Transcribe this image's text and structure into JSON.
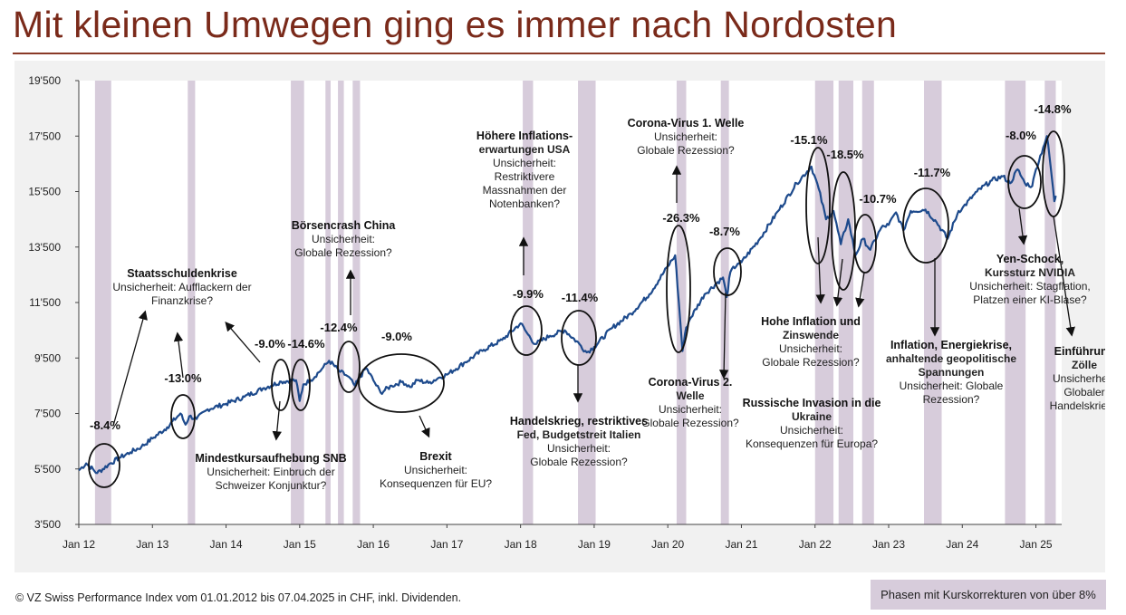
{
  "title": "Mit kleinen Umwegen ging es immer nach Nordosten",
  "footnote": "© VZ   Swiss Performance Index vom 01.01.2012 bis 07.04.2025 in CHF, inkl. Dividenden.",
  "legend_label": "Phasen mit Kurskorrekturen von über 8%",
  "colors": {
    "title": "#7a2a1a",
    "line": "#1d4a8c",
    "band": "#d7ccdb",
    "panel": "#f1f1f1"
  },
  "chart_data": {
    "type": "line",
    "title": "Mit kleinen Umwegen ging es immer nach Nordosten",
    "ylim": [
      3500,
      19500
    ],
    "yticks": [
      3500,
      5500,
      7500,
      9500,
      11500,
      13500,
      15500,
      17500,
      19500
    ],
    "ytick_labels": [
      "3'500",
      "5'500",
      "7'500",
      "9'500",
      "11'500",
      "13'500",
      "15'500",
      "17'500",
      "19'500"
    ],
    "xlim": [
      2012.0,
      2025.35
    ],
    "xticks": [
      2012,
      2013,
      2014,
      2015,
      2016,
      2017,
      2018,
      2019,
      2020,
      2021,
      2022,
      2023,
      2024,
      2025
    ],
    "xtick_labels": [
      "Jan 12",
      "Jan 13",
      "Jan 14",
      "Jan 15",
      "Jan 16",
      "Jan 17",
      "Jan 18",
      "Jan 19",
      "Jan 20",
      "Jan 21",
      "Jan 22",
      "Jan 23",
      "Jan 24",
      "Jan 25"
    ],
    "grid": false,
    "series": [
      {
        "x": [
          2012.0,
          2012.1,
          2012.25,
          2012.4,
          2012.55,
          2012.7,
          2012.85,
          2013.0,
          2013.2,
          2013.38,
          2013.45,
          2013.5,
          2013.6,
          2013.75,
          2014.0,
          2014.25,
          2014.5,
          2014.75,
          2014.95,
          2015.0,
          2015.05,
          2015.15,
          2015.3,
          2015.4,
          2015.55,
          2015.65,
          2015.75,
          2015.9,
          2016.0,
          2016.1,
          2016.25,
          2016.4,
          2016.5,
          2016.6,
          2016.75,
          2016.9,
          2017.0,
          2017.25,
          2017.5,
          2017.75,
          2018.0,
          2018.1,
          2018.2,
          2018.4,
          2018.6,
          2018.8,
          2018.9,
          2019.0,
          2019.25,
          2019.5,
          2019.75,
          2020.0,
          2020.1,
          2020.15,
          2020.2,
          2020.25,
          2020.3,
          2020.5,
          2020.75,
          2020.8,
          2020.85,
          2020.95,
          2021.0,
          2021.25,
          2021.5,
          2021.75,
          2021.95,
          2022.05,
          2022.15,
          2022.25,
          2022.35,
          2022.45,
          2022.55,
          2022.65,
          2022.75,
          2022.9,
          2023.0,
          2023.1,
          2023.2,
          2023.3,
          2023.5,
          2023.65,
          2023.8,
          2023.95,
          2024.0,
          2024.2,
          2024.4,
          2024.55,
          2024.65,
          2024.75,
          2024.85,
          2024.95,
          2025.0,
          2025.1,
          2025.15,
          2025.2,
          2025.25,
          2025.27
        ],
        "values": [
          5450,
          5700,
          5350,
          5650,
          5900,
          6100,
          6300,
          6600,
          7000,
          7500,
          7100,
          7400,
          7300,
          7650,
          7850,
          8100,
          8400,
          8650,
          8700,
          7950,
          8550,
          8700,
          9100,
          9400,
          9000,
          8850,
          8500,
          9150,
          8700,
          8250,
          8500,
          8650,
          8450,
          8700,
          8600,
          8800,
          8900,
          9350,
          9800,
          10150,
          10750,
          10350,
          10000,
          10300,
          10500,
          10000,
          9700,
          9900,
          10600,
          11100,
          11800,
          12800,
          13200,
          11500,
          9750,
          10600,
          10900,
          11800,
          12400,
          11700,
          12600,
          12900,
          12950,
          13800,
          14800,
          15800,
          16400,
          15600,
          14500,
          14800,
          13600,
          14500,
          13200,
          13800,
          13400,
          14200,
          14300,
          14750,
          14100,
          14800,
          14850,
          14400,
          13800,
          14800,
          14900,
          15500,
          15900,
          16050,
          15800,
          16300,
          15800,
          15700,
          16300,
          17100,
          17500,
          16400,
          15150,
          15350
        ],
        "name": ""
      }
    ],
    "bands": [
      [
        2012.22,
        2012.44
      ],
      [
        2013.48,
        2013.58
      ],
      [
        2014.88,
        2015.06
      ],
      [
        2015.35,
        2015.42
      ],
      [
        2015.52,
        2015.6
      ],
      [
        2015.72,
        2015.82
      ],
      [
        2018.03,
        2018.17
      ],
      [
        2018.78,
        2019.02
      ],
      [
        2020.12,
        2020.25
      ],
      [
        2020.72,
        2020.83
      ],
      [
        2022.0,
        2022.25
      ],
      [
        2022.32,
        2022.52
      ],
      [
        2022.64,
        2022.8
      ],
      [
        2023.48,
        2023.72
      ],
      [
        2024.58,
        2024.86
      ],
      [
        2025.12,
        2025.27
      ]
    ],
    "annotations": [
      {
        "label": "-8.4%",
        "x": 2012.35,
        "y": 6400
      },
      {
        "label": "-13.0%",
        "x": 2013.5,
        "y": 8450
      },
      {
        "label": "-9.0%",
        "x": 2014.72,
        "y": 9950
      },
      {
        "label": "-14.6%",
        "x": 2015.16,
        "y": 9950
      },
      {
        "label": "-12.4%",
        "x": 2015.66,
        "y": 10650
      },
      {
        "label": "-9.0%",
        "x": 2016.5,
        "y": 10150
      },
      {
        "label": "-9.9%",
        "x": 2018.1,
        "y": 11850
      },
      {
        "label": "-11.4%",
        "x": 2018.92,
        "y": 11650
      },
      {
        "label": "-26.3%",
        "x": 2020.0,
        "y": 14450
      },
      {
        "label": "-8.7%",
        "x": 2020.8,
        "y": 13950
      },
      {
        "label": "-15.1%",
        "x": 2021.95,
        "y": 17500
      },
      {
        "label": "-18.5%",
        "x": 2022.4,
        "y": 16850
      },
      {
        "label": "-10.7%",
        "x": 2022.85,
        "y": 15150
      },
      {
        "label": "-11.7%",
        "x": 2023.72,
        "y": 16100
      },
      {
        "label": "-8.0%",
        "x": 2024.76,
        "y": 17650
      },
      {
        "label": "-14.8%",
        "x": 2025.35,
        "y": 18650
      }
    ],
    "callouts": [
      {
        "heading": "Staatsschuldenkrise",
        "lines": [
          "Unsicherheit: Aufflackern der",
          "Finanzkrise?"
        ]
      },
      {
        "heading": "Börsencrash China",
        "lines": [
          "Unsicherheit:",
          "Globale Rezession?"
        ]
      },
      {
        "heading": "Höhere Inflations-",
        "lines": [
          "erwartungen USA",
          "Unsicherheit:",
          "Restriktivere",
          "Massnahmen der",
          "Notenbanken?"
        ]
      },
      {
        "heading": "Corona-Virus 1. Welle",
        "lines": [
          "Unsicherheit:",
          "Globale Rezession?"
        ]
      },
      {
        "heading": "Mindestkursaufhebung SNB",
        "lines": [
          "Unsicherheit: Einbruch der",
          "Schweizer Konjunktur?"
        ]
      },
      {
        "heading": "Brexit",
        "lines": [
          "Unsicherheit:",
          "Konsequenzen für EU?"
        ]
      },
      {
        "heading": "Handelskrieg, restriktives",
        "lines": [
          "Fed, Budgetstreit Italien",
          "Unsicherheit:",
          "Globale Rezession?"
        ]
      },
      {
        "heading": "Corona-Virus 2.",
        "lines": [
          "Welle",
          "Unsicherheit:",
          "Globale Rezession?"
        ]
      },
      {
        "heading": "Hohe Inflation und",
        "lines": [
          "Zinswende",
          "Unsicherheit:",
          "Globale Rezession?"
        ]
      },
      {
        "heading": "Russische Invasion in die",
        "lines": [
          "Ukraine",
          "Unsicherheit:",
          "Konsequenzen für Europa?"
        ]
      },
      {
        "heading": "Inflation, Energiekrise,",
        "lines": [
          "anhaltende geopolitische",
          "Spannungen",
          "Unsicherheit: Globale",
          "Rezession?"
        ]
      },
      {
        "heading": "Yen-Schock,",
        "lines": [
          "Kurssturz NVIDIA",
          "Unsicherheit: Stagflation,",
          "Platzen einer KI-Blase?"
        ]
      },
      {
        "heading": "Einführung",
        "lines": [
          "Zölle",
          "Unsicherheit:",
          "Globaler",
          "Handelskrieg?"
        ]
      }
    ]
  }
}
